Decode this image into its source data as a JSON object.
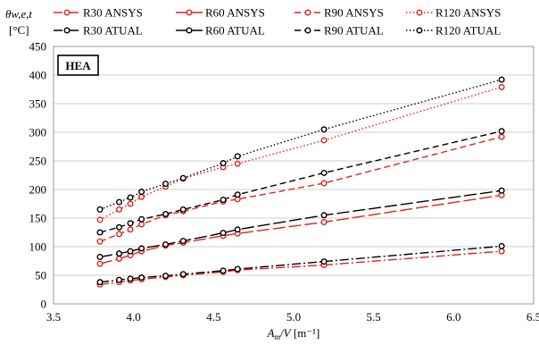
{
  "chart_data": {
    "type": "line",
    "ylabel_lines": [
      "θw,e,t",
      "[°C]"
    ],
    "xlabel_main": "Am/V",
    "xlabel_unit": "[m⁻¹]",
    "annotation": "HEA",
    "xlim": [
      3.5,
      6.5
    ],
    "ylim": [
      0,
      450
    ],
    "xticks": [
      3.5,
      4.0,
      4.5,
      5.0,
      5.5,
      6.0,
      6.5
    ],
    "xtick_labels": [
      "3.5",
      "4.0",
      "4.5",
      "5.0",
      "5.5",
      "6.0",
      "6.5"
    ],
    "yticks": [
      0,
      50,
      100,
      150,
      200,
      250,
      300,
      350,
      400,
      450
    ],
    "ytick_labels": [
      "0",
      "50",
      "100",
      "150",
      "200",
      "250",
      "300",
      "350",
      "400",
      "450"
    ],
    "grid": "horizontal",
    "legend_placement": "top",
    "x": [
      3.79,
      3.91,
      3.98,
      4.05,
      4.2,
      4.31,
      4.56,
      4.65,
      5.19,
      6.3
    ],
    "series": [
      {
        "name": "R30 ANSYS",
        "color": "#e2231a",
        "dash": "10,3,2,3",
        "marker": "red-dot",
        "values": [
          34,
          38,
          41,
          43,
          47,
          50,
          56,
          59,
          68,
          92
        ]
      },
      {
        "name": "R60 ANSYS",
        "color": "#e2231a",
        "dash": "14,4",
        "marker": "red-dot",
        "values": [
          70,
          79,
          85,
          92,
          102,
          107,
          119,
          123,
          143,
          190
        ]
      },
      {
        "name": "R90 ANSYS",
        "color": "#e2231a",
        "dash": "7,4",
        "marker": "red-dot",
        "values": [
          109,
          122,
          130,
          139,
          155,
          162,
          179,
          183,
          211,
          292
        ]
      },
      {
        "name": "R120 ANSYS",
        "color": "#e2231a",
        "dash": "1.5,2.5",
        "marker": "red-dot",
        "values": [
          147,
          165,
          175,
          187,
          205,
          219,
          239,
          245,
          286,
          379
        ]
      },
      {
        "name": "R30 ATUAL",
        "color": "#000000",
        "dash": "10,3,2,3",
        "marker": "black-dot",
        "values": [
          38,
          42,
          44,
          46,
          49,
          52,
          58,
          61,
          74,
          101
        ]
      },
      {
        "name": "R60 ATUAL",
        "color": "#000000",
        "dash": "14,4",
        "marker": "black-dot",
        "values": [
          82,
          88,
          92,
          97,
          104,
          110,
          124,
          130,
          155,
          198
        ]
      },
      {
        "name": "R90 ATUAL",
        "color": "#000000",
        "dash": "7,4",
        "marker": "black-dot",
        "values": [
          125,
          134,
          141,
          148,
          157,
          165,
          182,
          191,
          229,
          302
        ]
      },
      {
        "name": "R120 ATUAL",
        "color": "#000000",
        "dash": "1.5,2.5",
        "marker": "black-dot",
        "values": [
          165,
          178,
          186,
          196,
          210,
          220,
          246,
          258,
          305,
          392
        ]
      }
    ]
  }
}
